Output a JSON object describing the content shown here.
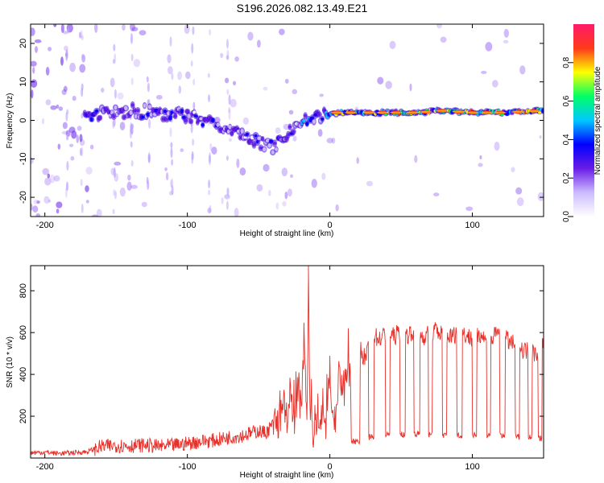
{
  "title": "S196.2026.082.13.49.E21",
  "chart_data": [
    {
      "type": "heatmap",
      "name": "spectrogram",
      "xlabel": "Height of straight line (km)",
      "ylabel": "Frequency (Hz)",
      "xlim": [
        -210,
        150
      ],
      "ylim": [
        -25,
        25
      ],
      "xticks": [
        -200,
        -100,
        0,
        100
      ],
      "yticks": [
        -20,
        -10,
        0,
        10,
        20
      ],
      "colorbar": {
        "label": "Normalized spectral amplitude",
        "range": [
          0,
          1
        ],
        "ticks": [
          "0.0",
          "0.2",
          "0.4",
          "0.6",
          "0.8"
        ],
        "tick_values": [
          0.0,
          0.2,
          0.4,
          0.6,
          0.8
        ],
        "stops": [
          "#ffffff",
          "#ccbbff",
          "#6a1ce6",
          "#0000ff",
          "#00c8ff",
          "#00ff66",
          "#ffff00",
          "#ff3a1a",
          "#ff1a6a"
        ]
      },
      "ridge": {
        "x": [
          -170,
          -155,
          -140,
          -120,
          -100,
          -85,
          -70,
          -55,
          -40,
          -30,
          -20,
          -10,
          0,
          20,
          40,
          60,
          80,
          100,
          120,
          150
        ],
        "freq": [
          1,
          2,
          2.5,
          2,
          1,
          0,
          -2,
          -5,
          -7,
          -4,
          0,
          1,
          2,
          2,
          2,
          2,
          2.5,
          2,
          2,
          2.5
        ]
      }
    },
    {
      "type": "line",
      "name": "snr",
      "xlabel": "Height of straight line (km)",
      "ylabel": "SNR (10 * v/v)",
      "xlim": [
        -210,
        150
      ],
      "ylim": [
        0,
        920
      ],
      "xticks": [
        -200,
        -100,
        0,
        100
      ],
      "yticks": [
        200,
        400,
        600,
        800
      ],
      "color": "#e8302a",
      "x": [
        -210,
        -200,
        -190,
        -180,
        -170,
        -165,
        -160,
        -150,
        -140,
        -130,
        -120,
        -110,
        -100,
        -90,
        -80,
        -70,
        -60,
        -50,
        -45,
        -40,
        -35,
        -32,
        -30,
        -28,
        -25,
        -22,
        -20,
        -18,
        -16,
        -15,
        -14,
        -13,
        -12,
        -10,
        -8,
        -5,
        -3,
        0,
        3,
        6,
        10,
        13,
        16,
        20,
        25,
        30,
        35,
        40,
        45,
        50,
        55,
        60,
        65,
        70,
        75,
        80,
        85,
        90,
        95,
        100,
        105,
        110,
        115,
        120,
        125,
        130,
        135,
        140,
        145,
        150
      ],
      "y": [
        25,
        28,
        22,
        26,
        30,
        45,
        55,
        60,
        58,
        62,
        55,
        60,
        70,
        80,
        85,
        100,
        110,
        130,
        120,
        160,
        180,
        260,
        90,
        300,
        120,
        380,
        170,
        640,
        150,
        920,
        160,
        300,
        110,
        200,
        170,
        260,
        130,
        450,
        75,
        390,
        330,
        480,
        200,
        540,
        470,
        590,
        570,
        600,
        580,
        610,
        590,
        620,
        580,
        600,
        610,
        590,
        580,
        600,
        590,
        570,
        600,
        560,
        580,
        610,
        560,
        540,
        520,
        510,
        500,
        540
      ],
      "dropouts": [
        {
          "x0": 15,
          "x1": 21,
          "level": 80
        },
        {
          "x0": 27,
          "x1": 31,
          "level": 100
        },
        {
          "x0": 39,
          "x1": 42,
          "level": 110
        },
        {
          "x0": 49,
          "x1": 53,
          "level": 115
        },
        {
          "x0": 59,
          "x1": 63,
          "level": 115
        },
        {
          "x0": 69,
          "x1": 72,
          "level": 110
        },
        {
          "x0": 79,
          "x1": 82,
          "level": 110
        },
        {
          "x0": 89,
          "x1": 93,
          "level": 110
        },
        {
          "x0": 100,
          "x1": 103,
          "level": 110
        },
        {
          "x0": 110,
          "x1": 113,
          "level": 110
        },
        {
          "x0": 119,
          "x1": 123,
          "level": 110
        },
        {
          "x0": 130,
          "x1": 133,
          "level": 105
        },
        {
          "x0": 139,
          "x1": 142,
          "level": 105
        },
        {
          "x0": 146,
          "x1": 149,
          "level": 95
        }
      ]
    }
  ]
}
